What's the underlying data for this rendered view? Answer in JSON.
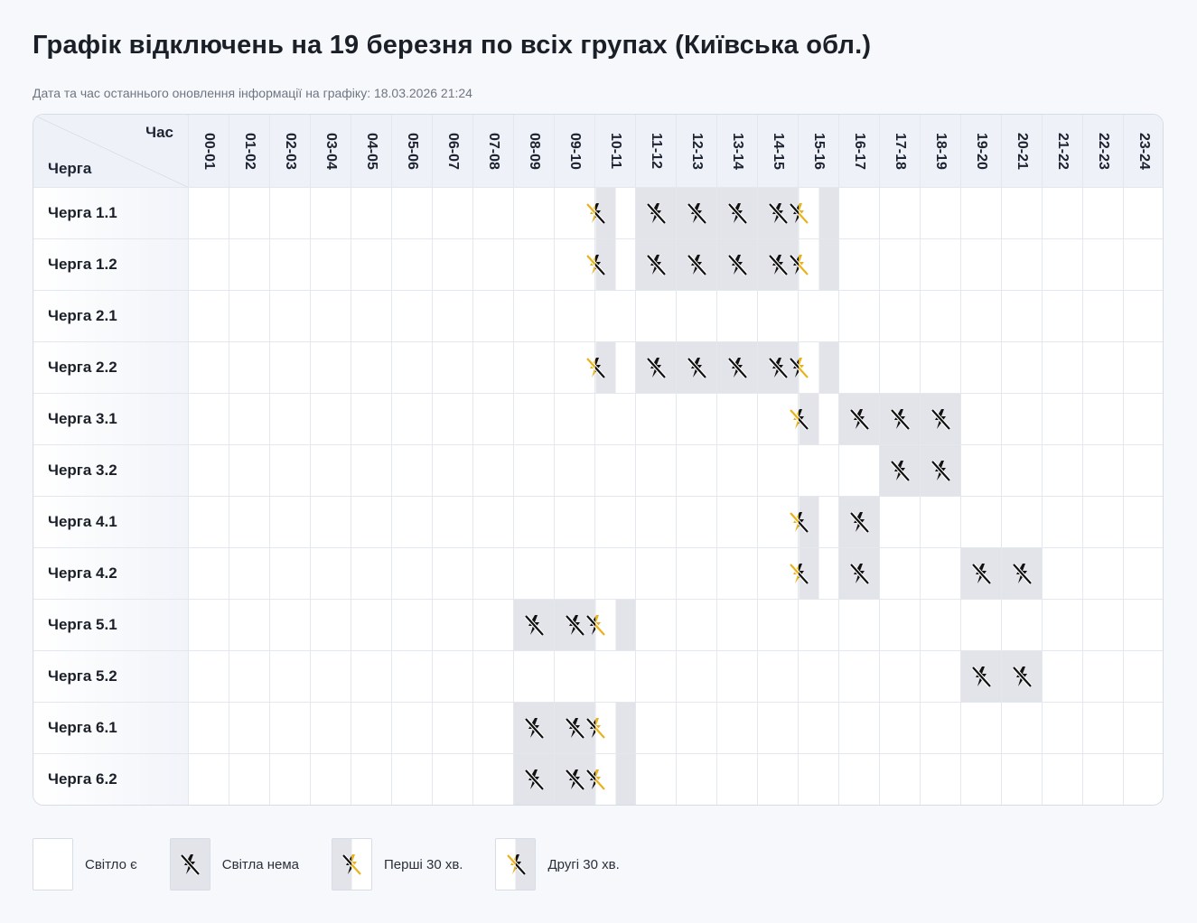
{
  "title": "Графік відключень на 19 березня по всіх групах (Київська обл.)",
  "updated": "Дата та час останнього оновлення інформації на графіку: 18.03.2026 21:24",
  "corner": {
    "hour_label": "Час",
    "queue_label": "Черга"
  },
  "hours": [
    "00-01",
    "01-02",
    "02-03",
    "03-04",
    "04-05",
    "05-06",
    "06-07",
    "07-08",
    "08-09",
    "09-10",
    "10-11",
    "11-12",
    "12-13",
    "13-14",
    "14-15",
    "15-16",
    "16-17",
    "17-18",
    "18-19",
    "19-20",
    "20-21",
    "21-22",
    "22-23",
    "23-24"
  ],
  "rows": [
    {
      "label": "Черга 1.1",
      "cells": [
        "y",
        "y",
        "y",
        "y",
        "y",
        "y",
        "y",
        "y",
        "y",
        "y",
        "second",
        "n",
        "n",
        "n",
        "n",
        "first",
        "y",
        "y",
        "y",
        "y",
        "y",
        "y",
        "y",
        "y"
      ]
    },
    {
      "label": "Черга 1.2",
      "cells": [
        "y",
        "y",
        "y",
        "y",
        "y",
        "y",
        "y",
        "y",
        "y",
        "y",
        "second",
        "n",
        "n",
        "n",
        "n",
        "first",
        "y",
        "y",
        "y",
        "y",
        "y",
        "y",
        "y",
        "y"
      ]
    },
    {
      "label": "Черга 2.1",
      "cells": [
        "y",
        "y",
        "y",
        "y",
        "y",
        "y",
        "y",
        "y",
        "y",
        "y",
        "y",
        "y",
        "y",
        "y",
        "y",
        "y",
        "y",
        "y",
        "y",
        "y",
        "y",
        "y",
        "y",
        "y"
      ]
    },
    {
      "label": "Черга 2.2",
      "cells": [
        "y",
        "y",
        "y",
        "y",
        "y",
        "y",
        "y",
        "y",
        "y",
        "y",
        "second",
        "n",
        "n",
        "n",
        "n",
        "first",
        "y",
        "y",
        "y",
        "y",
        "y",
        "y",
        "y",
        "y"
      ]
    },
    {
      "label": "Черга 3.1",
      "cells": [
        "y",
        "y",
        "y",
        "y",
        "y",
        "y",
        "y",
        "y",
        "y",
        "y",
        "y",
        "y",
        "y",
        "y",
        "y",
        "second",
        "n",
        "n",
        "n",
        "y",
        "y",
        "y",
        "y",
        "y"
      ]
    },
    {
      "label": "Черга 3.2",
      "cells": [
        "y",
        "y",
        "y",
        "y",
        "y",
        "y",
        "y",
        "y",
        "y",
        "y",
        "y",
        "y",
        "y",
        "y",
        "y",
        "y",
        "y",
        "n",
        "n",
        "y",
        "y",
        "y",
        "y",
        "y"
      ]
    },
    {
      "label": "Черга 4.1",
      "cells": [
        "y",
        "y",
        "y",
        "y",
        "y",
        "y",
        "y",
        "y",
        "y",
        "y",
        "y",
        "y",
        "y",
        "y",
        "y",
        "second",
        "n",
        "y",
        "y",
        "y",
        "y",
        "y",
        "y",
        "y"
      ]
    },
    {
      "label": "Черга 4.2",
      "cells": [
        "y",
        "y",
        "y",
        "y",
        "y",
        "y",
        "y",
        "y",
        "y",
        "y",
        "y",
        "y",
        "y",
        "y",
        "y",
        "second",
        "n",
        "y",
        "y",
        "n",
        "n",
        "y",
        "y",
        "y"
      ]
    },
    {
      "label": "Черга 5.1",
      "cells": [
        "y",
        "y",
        "y",
        "y",
        "y",
        "y",
        "y",
        "y",
        "n",
        "n",
        "first",
        "y",
        "y",
        "y",
        "y",
        "y",
        "y",
        "y",
        "y",
        "y",
        "y",
        "y",
        "y",
        "y"
      ]
    },
    {
      "label": "Черга 5.2",
      "cells": [
        "y",
        "y",
        "y",
        "y",
        "y",
        "y",
        "y",
        "y",
        "y",
        "y",
        "y",
        "y",
        "y",
        "y",
        "y",
        "y",
        "y",
        "y",
        "y",
        "n",
        "n",
        "y",
        "y",
        "y"
      ]
    },
    {
      "label": "Черга 6.1",
      "cells": [
        "y",
        "y",
        "y",
        "y",
        "y",
        "y",
        "y",
        "y",
        "n",
        "n",
        "first",
        "y",
        "y",
        "y",
        "y",
        "y",
        "y",
        "y",
        "y",
        "y",
        "y",
        "y",
        "y",
        "y"
      ]
    },
    {
      "label": "Черга 6.2",
      "cells": [
        "y",
        "y",
        "y",
        "y",
        "y",
        "y",
        "y",
        "y",
        "n",
        "n",
        "first",
        "y",
        "y",
        "y",
        "y",
        "y",
        "y",
        "y",
        "y",
        "y",
        "y",
        "y",
        "y",
        "y"
      ]
    }
  ],
  "legend": [
    {
      "key": "y",
      "label": "Світло є"
    },
    {
      "key": "n",
      "label": "Світла нема"
    },
    {
      "key": "first",
      "label": "Перші 30 хв."
    },
    {
      "key": "second",
      "label": "Другі 30 хв."
    }
  ],
  "colors": {
    "outage_gray": "#e2e4e9",
    "icon_black": "#111111",
    "icon_yellow": "#e8b21e",
    "header_bg": "#eef2f8"
  },
  "icons": {
    "no_power": "no-power-icon",
    "partial": "partial-outage-icon"
  }
}
